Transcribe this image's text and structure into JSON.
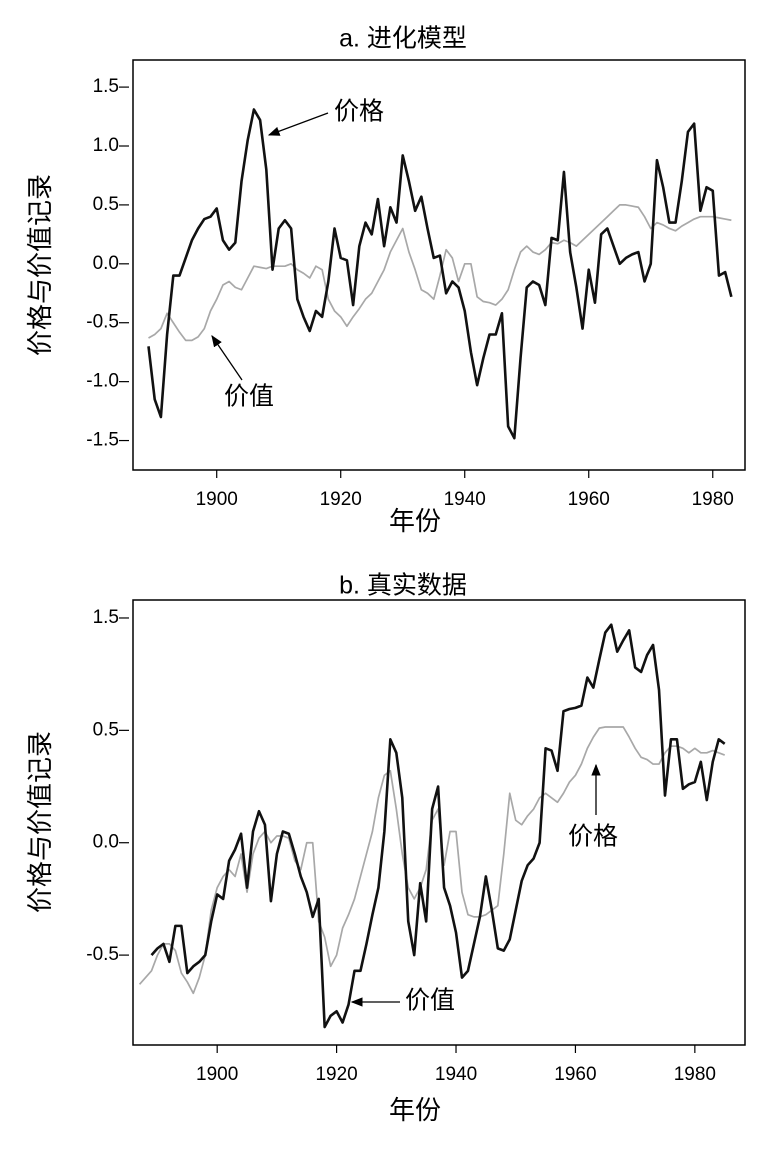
{
  "chart_data": [
    {
      "type": "line",
      "title": "a. 进化模型",
      "xlabel": "年份",
      "ylabel": "价格与价值记录",
      "xlim": [
        1886.5,
        1985.2
      ],
      "ylim": [
        -1.75,
        1.73
      ],
      "xticks": [
        1900,
        1920,
        1940,
        1960,
        1980
      ],
      "yticks": [
        {
          "value": -1.5,
          "label": "-1.5"
        },
        {
          "value": -1,
          "label": "-1.0"
        },
        -0.5,
        {
          "value": 0,
          "label": "0.0"
        },
        0.5,
        {
          "value": 1,
          "label": "1.0"
        },
        1.5
      ],
      "x": [
        1889,
        1890,
        1891,
        1892,
        1893,
        1894,
        1895,
        1896,
        1897,
        1898,
        1899,
        1900,
        1901,
        1902,
        1903,
        1904,
        1905,
        1906,
        1907,
        1908,
        1909,
        1910,
        1911,
        1912,
        1913,
        1914,
        1915,
        1916,
        1917,
        1918,
        1919,
        1920,
        1921,
        1922,
        1923,
        1924,
        1925,
        1926,
        1927,
        1928,
        1929,
        1930,
        1931,
        1932,
        1933,
        1934,
        1935,
        1936,
        1937,
        1938,
        1939,
        1940,
        1941,
        1942,
        1943,
        1944,
        1945,
        1946,
        1947,
        1948,
        1949,
        1950,
        1951,
        1952,
        1953,
        1954,
        1955,
        1956,
        1957,
        1958,
        1959,
        1960,
        1961,
        1962,
        1963,
        1964,
        1965,
        1966,
        1967,
        1968,
        1969,
        1970,
        1971,
        1972,
        1973,
        1974,
        1975,
        1976,
        1977,
        1978,
        1979,
        1980,
        1981,
        1982,
        1983
      ],
      "series": [
        {
          "name": "价值",
          "color": "#a8a8a8",
          "values": [
            -0.63,
            -0.6,
            -0.55,
            -0.42,
            -0.5,
            -0.58,
            -0.65,
            -0.65,
            -0.62,
            -0.55,
            -0.4,
            -0.3,
            -0.18,
            -0.15,
            -0.2,
            -0.22,
            -0.12,
            -0.02,
            -0.03,
            -0.04,
            -0.02,
            -0.02,
            -0.02,
            0,
            -0.05,
            -0.08,
            -0.12,
            -0.02,
            -0.05,
            -0.3,
            -0.4,
            -0.45,
            -0.53,
            -0.45,
            -0.38,
            -0.3,
            -0.25,
            -0.15,
            -0.05,
            0.1,
            0.2,
            0.3,
            0.1,
            -0.05,
            -0.22,
            -0.25,
            -0.3,
            -0.1,
            0.12,
            0.05,
            -0.15,
            0,
            0,
            -0.28,
            -0.32,
            -0.33,
            -0.35,
            -0.3,
            -0.22,
            -0.05,
            0.1,
            0.15,
            0.1,
            0.08,
            0.12,
            0.18,
            0.17,
            0.2,
            0.18,
            0.15,
            0.2,
            0.25,
            0.3,
            0.35,
            0.4,
            0.45,
            0.5,
            0.5,
            0.49,
            0.48,
            0.4,
            0.3,
            0.35,
            0.33,
            0.3,
            0.28,
            0.32,
            0.35,
            0.38,
            0.4,
            0.4,
            0.4,
            0.39,
            0.38,
            0.37
          ]
        },
        {
          "name": "价格",
          "color": "#111111",
          "values": [
            -0.7,
            -1.15,
            -1.3,
            -0.6,
            -0.1,
            -0.1,
            0.05,
            0.2,
            0.3,
            0.38,
            0.4,
            0.47,
            0.2,
            0.12,
            0.18,
            0.7,
            1.05,
            1.31,
            1.22,
            0.8,
            -0.05,
            0.3,
            0.37,
            0.3,
            -0.3,
            -0.45,
            -0.57,
            -0.4,
            -0.45,
            -0.15,
            0.3,
            0.05,
            0.03,
            -0.35,
            0.15,
            0.35,
            0.25,
            0.55,
            0.15,
            0.48,
            0.35,
            0.92,
            0.7,
            0.45,
            0.57,
            0.3,
            0.05,
            0.07,
            -0.25,
            -0.15,
            -0.2,
            -0.4,
            -0.75,
            -1.03,
            -0.8,
            -0.6,
            -0.6,
            -0.42,
            -1.38,
            -1.48,
            -0.8,
            -0.2,
            -0.15,
            -0.18,
            -0.35,
            0.22,
            0.2,
            0.78,
            0.1,
            -0.2,
            -0.55,
            -0.05,
            -0.33,
            0.25,
            0.3,
            0.15,
            0,
            0.05,
            0.08,
            0.1,
            -0.15,
            0,
            0.88,
            0.65,
            0.35,
            0.35,
            0.7,
            1.12,
            1.19,
            0.45,
            0.65,
            0.62,
            -0.1,
            -0.07,
            -0.28
          ]
        }
      ]
    },
    {
      "type": "line",
      "title": "b. 真实数据",
      "xlabel": "年份",
      "ylabel": "价格与价值记录",
      "xlim": [
        1885.9,
        1988.4
      ],
      "ylim": [
        -0.9,
        1.66
      ],
      "xticks": [
        1900,
        1920,
        1940,
        1960,
        1980
      ],
      "yticks": [
        -0.5,
        {
          "value": 0,
          "label": "0.0"
        },
        0.5,
        1.5
      ],
      "x": [
        1887,
        1888,
        1889,
        1890,
        1891,
        1892,
        1893,
        1894,
        1895,
        1896,
        1897,
        1898,
        1899,
        1900,
        1901,
        1902,
        1903,
        1904,
        1905,
        1906,
        1907,
        1908,
        1909,
        1910,
        1911,
        1912,
        1913,
        1914,
        1915,
        1916,
        1917,
        1918,
        1919,
        1920,
        1921,
        1922,
        1923,
        1924,
        1925,
        1926,
        1927,
        1928,
        1929,
        1930,
        1931,
        1932,
        1933,
        1934,
        1935,
        1936,
        1937,
        1938,
        1939,
        1940,
        1941,
        1942,
        1943,
        1944,
        1945,
        1946,
        1947,
        1948,
        1949,
        1950,
        1951,
        1952,
        1953,
        1954,
        1955,
        1956,
        1957,
        1958,
        1959,
        1960,
        1961,
        1962,
        1963,
        1964,
        1965,
        1966,
        1967,
        1968,
        1969,
        1970,
        1971,
        1972,
        1973,
        1974,
        1975,
        1976,
        1977,
        1978,
        1979,
        1980,
        1981,
        1982,
        1983,
        1984,
        1985
      ],
      "series": [
        {
          "name": "价值",
          "color": "#a8a8a8",
          "values": [
            -0.63,
            -0.6,
            -0.57,
            -0.5,
            -0.45,
            -0.45,
            -0.48,
            -0.58,
            -0.62,
            -0.67,
            -0.6,
            -0.5,
            -0.3,
            -0.2,
            -0.15,
            -0.12,
            -0.15,
            -0.05,
            -0.22,
            -0.05,
            0.02,
            0.05,
            0,
            0.03,
            0.03,
            0.02,
            -0.08,
            -0.12,
            0,
            0,
            -0.35,
            -0.42,
            -0.55,
            -0.5,
            -0.38,
            -0.32,
            -0.25,
            -0.15,
            -0.05,
            0.05,
            0.2,
            0.3,
            0.32,
            0.15,
            -0.05,
            -0.2,
            -0.25,
            -0.2,
            -0.12,
            0.1,
            0.15,
            -0.1,
            0.05,
            0.05,
            -0.22,
            -0.32,
            -0.33,
            -0.33,
            -0.32,
            -0.3,
            -0.28,
            -0.05,
            0.22,
            0.1,
            0.08,
            0.12,
            0.15,
            0.2,
            0.22,
            0.2,
            0.18,
            0.22,
            0.27,
            0.3,
            0.35,
            0.42,
            0.47,
            0.52,
            0.53,
            0.53,
            0.53,
            0.53,
            0.47,
            0.42,
            0.38,
            0.37,
            0.35,
            0.35,
            0.4,
            0.43,
            0.43,
            0.42,
            0.4,
            0.42,
            0.4,
            0.4,
            0.41,
            0.4,
            0.39
          ]
        },
        {
          "name": "价格",
          "color": "#111111",
          "values": [
            null,
            null,
            -0.5,
            -0.47,
            -0.45,
            -0.53,
            -0.37,
            -0.37,
            -0.58,
            -0.55,
            -0.53,
            -0.5,
            -0.35,
            -0.23,
            -0.25,
            -0.08,
            -0.03,
            0.04,
            -0.2,
            0.05,
            0.14,
            0.08,
            -0.26,
            -0.05,
            0.05,
            0.04,
            -0.05,
            -0.15,
            -0.22,
            -0.33,
            -0.25,
            -0.82,
            -0.77,
            -0.75,
            -0.8,
            -0.72,
            -0.57,
            -0.57,
            -0.45,
            -0.32,
            -0.2,
            0.05,
            0.46,
            0.4,
            0.2,
            -0.35,
            -0.5,
            -0.18,
            -0.35,
            0.15,
            0.25,
            -0.2,
            -0.28,
            -0.4,
            -0.6,
            -0.57,
            -0.45,
            -0.33,
            -0.15,
            -0.3,
            -0.47,
            -0.48,
            -0.43,
            -0.3,
            -0.17,
            -0.1,
            -0.07,
            0,
            0.42,
            0.41,
            0.32,
            0.67,
            0.69,
            0.7,
            0.72,
            0.97,
            0.88,
            1.13,
            1.37,
            1.44,
            1.2,
            1.3,
            1.39,
            1.06,
            1.02,
            1.17,
            1.26,
            0.86,
            0.21,
            0.46,
            0.46,
            0.24,
            0.26,
            0.27,
            0.36,
            0.19,
            0.36,
            0.46,
            0.44
          ]
        }
      ]
    }
  ]
}
